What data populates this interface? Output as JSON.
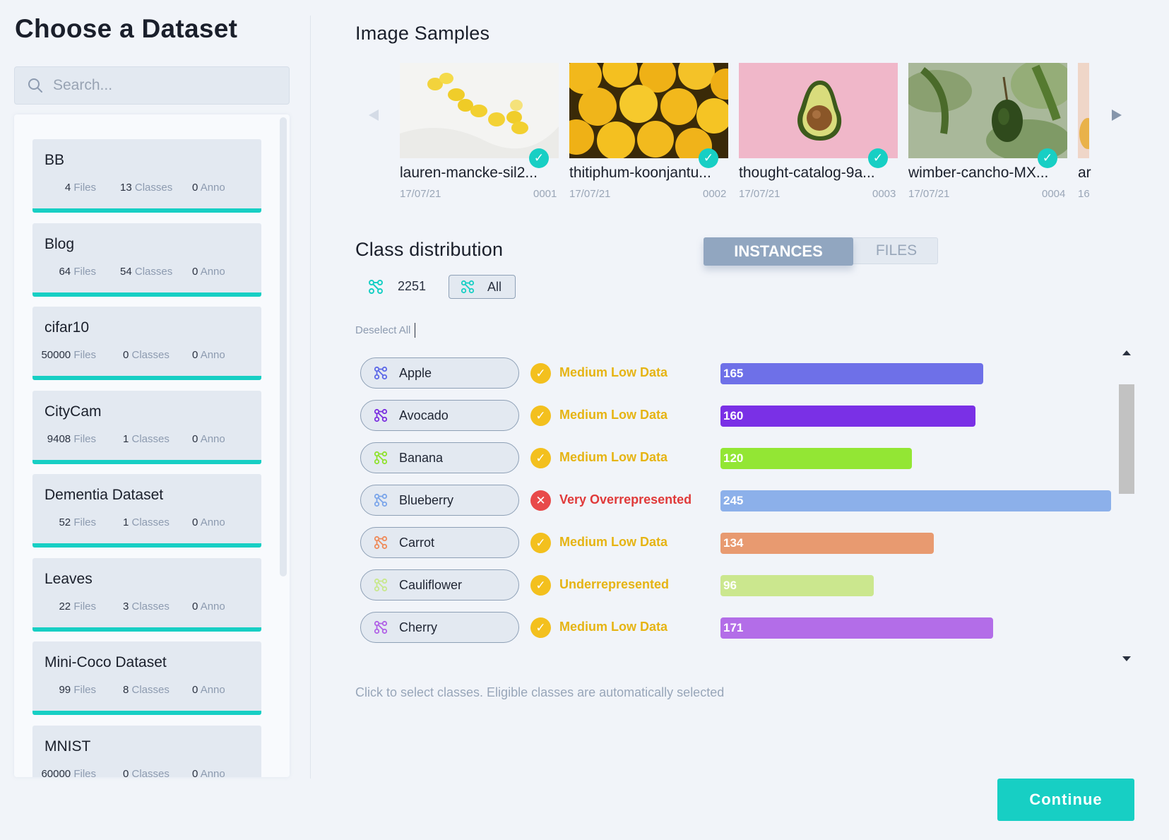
{
  "left_panel": {
    "title": "Choose a Dataset",
    "search_placeholder": "Search...",
    "stat_labels": {
      "files": "Files",
      "classes": "Classes",
      "anno": "Anno"
    },
    "accent_color": "#17cfc4",
    "datasets": [
      {
        "name": "BB",
        "files": "4",
        "classes": "13",
        "anno": "0"
      },
      {
        "name": "Blog",
        "files": "64",
        "classes": "54",
        "anno": "0"
      },
      {
        "name": "cifar10",
        "files": "50000",
        "classes": "0",
        "anno": "0"
      },
      {
        "name": "CityCam",
        "files": "9408",
        "classes": "1",
        "anno": "0"
      },
      {
        "name": "Dementia Dataset",
        "files": "52",
        "classes": "1",
        "anno": "0"
      },
      {
        "name": "Leaves",
        "files": "22",
        "classes": "3",
        "anno": "0"
      },
      {
        "name": "Mini-Coco Dataset",
        "files": "99",
        "classes": "8",
        "anno": "0"
      },
      {
        "name": "MNIST",
        "files": "60000",
        "classes": "0",
        "anno": "0"
      }
    ]
  },
  "samples": {
    "title": "Image Samples",
    "items": [
      {
        "name": "lauren-mancke-sil2...",
        "date": "17/07/21",
        "id": "0001",
        "image": "lemons-on-white",
        "selected": true
      },
      {
        "name": "thitiphum-koonjantu...",
        "date": "17/07/21",
        "id": "0002",
        "image": "pile-of-lemons",
        "selected": true
      },
      {
        "name": "thought-catalog-9a...",
        "date": "17/07/21",
        "id": "0003",
        "image": "avocado-on-pink",
        "selected": true
      },
      {
        "name": "wimber-cancho-MX...",
        "date": "17/07/21",
        "id": "0004",
        "image": "avocado-on-tree",
        "selected": true
      },
      {
        "name": "ar",
        "date": "16",
        "image": "partial-next-sample"
      }
    ]
  },
  "distribution": {
    "title": "Class distribution",
    "toggle": {
      "active": "INSTANCES",
      "inactive": "FILES"
    },
    "total_instances": "2251",
    "all_label": "All",
    "deselect_all": "Deselect All",
    "max_value": 245,
    "classes": [
      {
        "name": "Apple",
        "icon_color": "#5b67e8",
        "status": "Medium Low Data",
        "status_kind": "ok",
        "value": 165,
        "bar_color": "#6e70e8"
      },
      {
        "name": "Avocado",
        "icon_color": "#7a2ee0",
        "status": "Medium Low Data",
        "status_kind": "ok",
        "value": 160,
        "bar_color": "#7a30e6"
      },
      {
        "name": "Banana",
        "icon_color": "#8ee22c",
        "status": "Medium Low Data",
        "status_kind": "ok",
        "value": 120,
        "bar_color": "#93e634"
      },
      {
        "name": "Blueberry",
        "icon_color": "#7aa5ea",
        "status": "Very Overrepresented",
        "status_kind": "bad",
        "value": 245,
        "bar_color": "#8cb0ea"
      },
      {
        "name": "Carrot",
        "icon_color": "#ef8a5a",
        "status": "Medium Low Data",
        "status_kind": "ok",
        "value": 134,
        "bar_color": "#e89a70"
      },
      {
        "name": "Cauliflower",
        "icon_color": "#c8e88c",
        "status": "Underrepresented",
        "status_kind": "ok",
        "value": 96,
        "bar_color": "#cbe78e"
      },
      {
        "name": "Cherry",
        "icon_color": "#b060e6",
        "status": "Medium Low Data",
        "status_kind": "ok",
        "value": 171,
        "bar_color": "#b36de8"
      }
    ],
    "status_colors": {
      "ok": "#f3c01e",
      "bad": "#e84a4a",
      "ok_text": "#e6b413",
      "bad_text": "#e03a3a"
    },
    "hint": "Click to select classes. Eligible classes are automatically selected"
  },
  "continue_label": "Continue"
}
